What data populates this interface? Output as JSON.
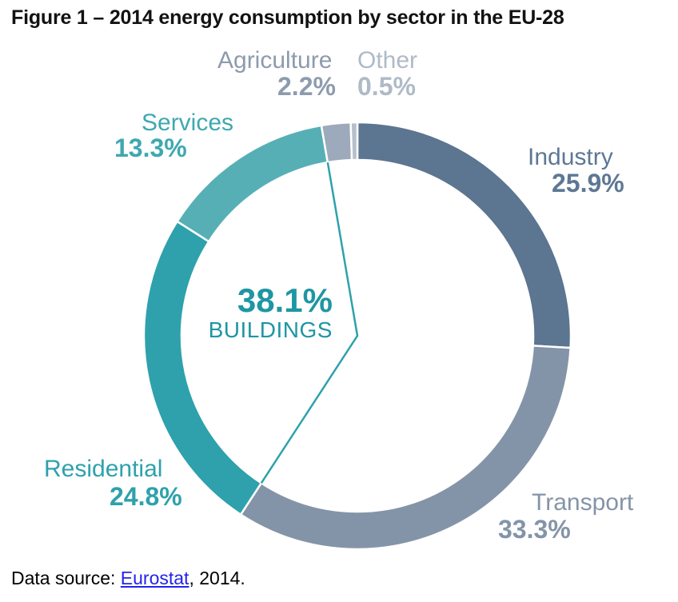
{
  "title": "Figure 1 – 2014 energy consumption by sector in the EU-28",
  "footer": {
    "prefix": "Data source: ",
    "link_text": "Eurostat",
    "suffix": ", 2014."
  },
  "chart_data": {
    "type": "pie",
    "subtype": "donut",
    "title": "2014 energy consumption by sector in the EU-28",
    "unit": "percent",
    "direction": "clockwise",
    "start_angle_deg_from_top": 0,
    "legend_position": "labels-around-donut",
    "gap_color": "#FFFFFF",
    "slices": [
      {
        "label": "Industry",
        "value": 25.9,
        "value_text": "25.9%",
        "color": "#5C7590",
        "label_color": "#5D7895"
      },
      {
        "label": "Transport",
        "value": 33.3,
        "value_text": "33.3%",
        "color": "#8494A8",
        "label_color": "#8494A8"
      },
      {
        "label": "Residential",
        "value": 24.8,
        "value_text": "24.8%",
        "color": "#2EA1AC",
        "label_color": "#2EA1AC"
      },
      {
        "label": "Services",
        "value": 13.3,
        "value_text": "13.3%",
        "color": "#57AFB6",
        "label_color": "#3FA8B1"
      },
      {
        "label": "Agriculture",
        "value": 2.2,
        "value_text": "2.2%",
        "color": "#9DAABB",
        "label_color": "#8D9BAE"
      },
      {
        "label": "Other",
        "value": 0.5,
        "value_text": "0.5%",
        "color": "#B6BFCB",
        "label_color": "#AFBAC7"
      }
    ],
    "center_callout": {
      "value_text": "38.1%",
      "label_text": "BUILDINGS",
      "text_color": "#1E96A3",
      "line_color": "#2EA1AC",
      "includes": [
        "Residential",
        "Services"
      ]
    }
  }
}
